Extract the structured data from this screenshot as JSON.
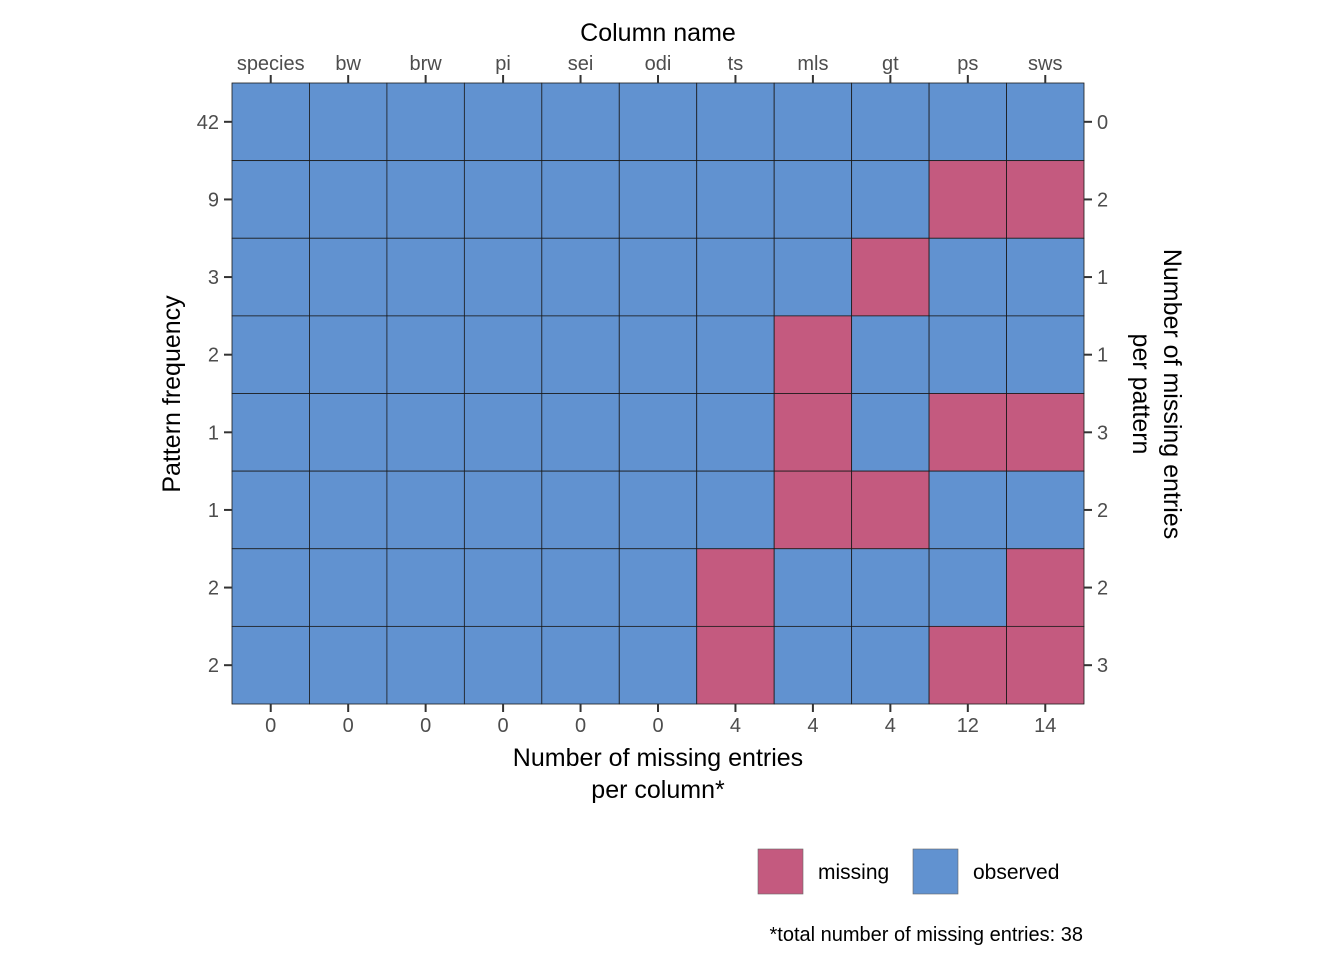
{
  "chart_data": {
    "type": "heatmap",
    "title": "",
    "columns": [
      "species",
      "bw",
      "brw",
      "pi",
      "sei",
      "odi",
      "ts",
      "mls",
      "gt",
      "ps",
      "sws"
    ],
    "missing_per_column": [
      "0",
      "0",
      "0",
      "0",
      "0",
      "0",
      "4",
      "4",
      "4",
      "12",
      "14"
    ],
    "pattern_frequency": [
      "42",
      "9",
      "3",
      "2",
      "1",
      "1",
      "2",
      "2"
    ],
    "missing_per_pattern": [
      "0",
      "2",
      "1",
      "1",
      "3",
      "2",
      "2",
      "3"
    ],
    "patterns": [
      [
        0,
        0,
        0,
        0,
        0,
        0,
        0,
        0,
        0,
        0,
        0
      ],
      [
        0,
        0,
        0,
        0,
        0,
        0,
        0,
        0,
        0,
        1,
        1
      ],
      [
        0,
        0,
        0,
        0,
        0,
        0,
        0,
        0,
        1,
        0,
        0
      ],
      [
        0,
        0,
        0,
        0,
        0,
        0,
        0,
        1,
        0,
        0,
        0
      ],
      [
        0,
        0,
        0,
        0,
        0,
        0,
        0,
        1,
        0,
        1,
        1
      ],
      [
        0,
        0,
        0,
        0,
        0,
        0,
        0,
        1,
        1,
        0,
        0
      ],
      [
        0,
        0,
        0,
        0,
        0,
        0,
        1,
        0,
        0,
        0,
        1
      ],
      [
        0,
        0,
        0,
        0,
        0,
        0,
        1,
        0,
        0,
        1,
        1
      ]
    ],
    "top_axis_title": "Column name",
    "bottom_axis_title_line1": "Number of missing entries",
    "bottom_axis_title_line2": "per column*",
    "left_axis_title": "Pattern frequency",
    "right_axis_title_line1": "Number of missing entries",
    "right_axis_title_line2": "per pattern",
    "legend": [
      {
        "key": "missing",
        "label": "missing",
        "color": "#c45a7f"
      },
      {
        "key": "observed",
        "label": "observed",
        "color": "#6192d0"
      }
    ],
    "legend_position": "bottom-right",
    "caption": "*total number of missing entries: 38"
  }
}
